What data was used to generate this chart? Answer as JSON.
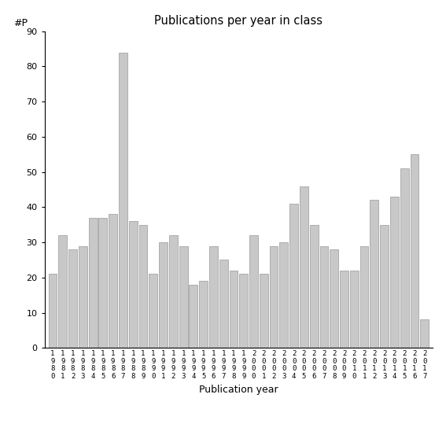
{
  "title": "Publications per year in class",
  "xlabel": "Publication year",
  "ylabel": "#P",
  "ylim": [
    0,
    90
  ],
  "yticks": [
    0,
    10,
    20,
    30,
    40,
    50,
    60,
    70,
    80,
    90
  ],
  "bar_color": "#c8c8c8",
  "bar_edgecolor": "#999999",
  "categories": [
    "1980",
    "1981",
    "1982",
    "1983",
    "1984",
    "1985",
    "1986",
    "1987",
    "1988",
    "1989",
    "1990",
    "1991",
    "1992",
    "1993",
    "1994",
    "1995",
    "1996",
    "1997",
    "1998",
    "1999",
    "2000",
    "2001",
    "2002",
    "2003",
    "2004",
    "2005",
    "2006",
    "2007",
    "2008",
    "2009",
    "2010",
    "2011",
    "2012",
    "2013",
    "2014",
    "2015",
    "2016",
    "2017"
  ],
  "values": [
    21,
    32,
    28,
    29,
    37,
    37,
    38,
    84,
    36,
    35,
    21,
    30,
    32,
    29,
    18,
    19,
    29,
    25,
    22,
    21,
    32,
    21,
    29,
    30,
    41,
    46,
    35,
    29,
    28,
    22,
    22,
    29,
    42,
    35,
    43,
    51,
    55,
    8
  ],
  "background_color": "#ffffff",
  "fig_width": 5.67,
  "fig_height": 5.67,
  "dpi": 100
}
